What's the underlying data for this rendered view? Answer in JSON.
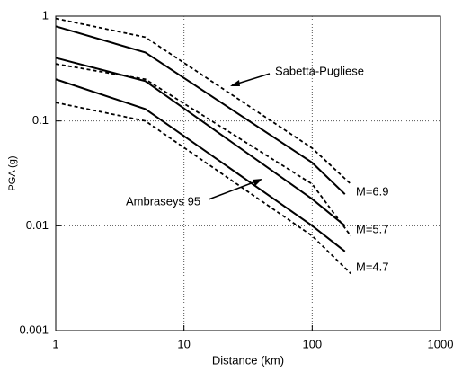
{
  "chart_data": {
    "type": "line",
    "x_label": "Distance (km)",
    "y_label": "PGA (g)",
    "xscale": "log",
    "yscale": "log",
    "xlim": [
      1,
      1000
    ],
    "ylim": [
      0.001,
      1
    ],
    "xticks": [
      1,
      10,
      100,
      1000
    ],
    "yticks": [
      0.001,
      0.01,
      0.1,
      1
    ],
    "grid": true,
    "series": [
      {
        "color": "#000000",
        "dashed": false,
        "x": [
          1,
          5,
          100,
          180
        ],
        "values": [
          0.8,
          0.45,
          0.04,
          0.02
        ]
      },
      {
        "color": "#000000",
        "dashed": false,
        "x": [
          1,
          5,
          100,
          180
        ],
        "values": [
          0.4,
          0.24,
          0.018,
          0.01
        ]
      },
      {
        "color": "#000000",
        "dashed": false,
        "x": [
          1,
          5,
          100,
          180
        ],
        "values": [
          0.25,
          0.13,
          0.01,
          0.0057
        ]
      },
      {
        "color": "#000000",
        "dashed": true,
        "x": [
          1,
          5,
          100,
          200
        ],
        "values": [
          0.95,
          0.63,
          0.055,
          0.025
        ]
      },
      {
        "color": "#000000",
        "dashed": true,
        "x": [
          1,
          5,
          100,
          200
        ],
        "values": [
          0.35,
          0.25,
          0.025,
          0.008
        ]
      },
      {
        "color": "#000000",
        "dashed": true,
        "x": [
          1,
          5,
          100,
          200
        ],
        "values": [
          0.15,
          0.1,
          0.008,
          0.0035
        ]
      }
    ],
    "annotations": [
      "Sabetta-Pugliese",
      "Ambraseys 95",
      "M=6.9",
      "M=5.7",
      "M=4.7"
    ]
  }
}
